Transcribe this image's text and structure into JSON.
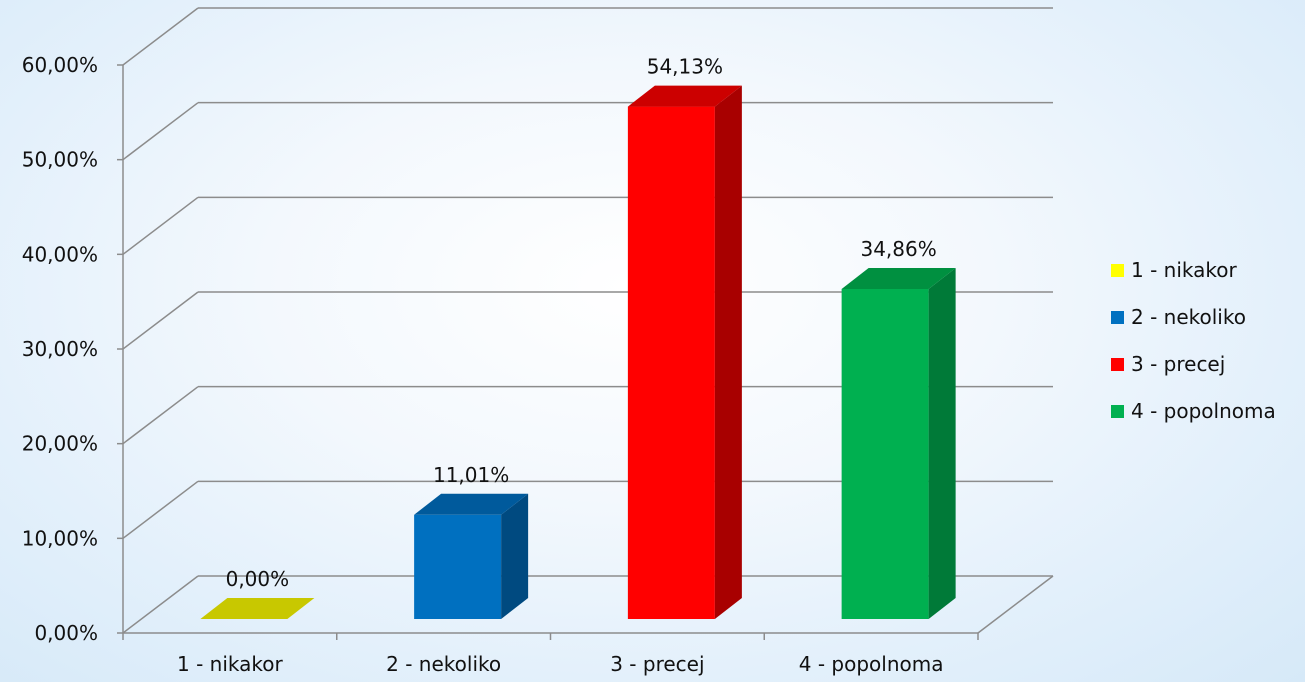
{
  "chart_data": {
    "type": "bar",
    "categories": [
      "1 - nikakor",
      "2 - nekoliko",
      "3 - precej",
      "4 - popolnoma"
    ],
    "values": [
      0.0,
      11.01,
      54.13,
      34.86
    ],
    "value_labels": [
      "0,00%",
      "11,01%",
      "54,13%",
      "34,86%"
    ],
    "colors": [
      "#ffff00",
      "#0070c0",
      "#ff0000",
      "#00b050"
    ],
    "side_colors": [
      "#b0b000",
      "#004a80",
      "#a80000",
      "#007a38"
    ],
    "top_colors": [
      "#c8c800",
      "#005a9c",
      "#cc0000",
      "#009040"
    ],
    "legend": [
      "1 - nikakor",
      "2 - nekoliko",
      "3 - precej",
      "4 - popolnoma"
    ],
    "legend_position": "right",
    "y_ticks": [
      0,
      10,
      20,
      30,
      40,
      50,
      60
    ],
    "y_tick_labels": [
      "0,00%",
      "10,00%",
      "20,00%",
      "30,00%",
      "40,00%",
      "50,00%",
      "60,00%"
    ],
    "ylim": [
      0,
      60
    ],
    "grid": true,
    "three_d": true,
    "title": "",
    "xlabel": "",
    "ylabel": ""
  }
}
